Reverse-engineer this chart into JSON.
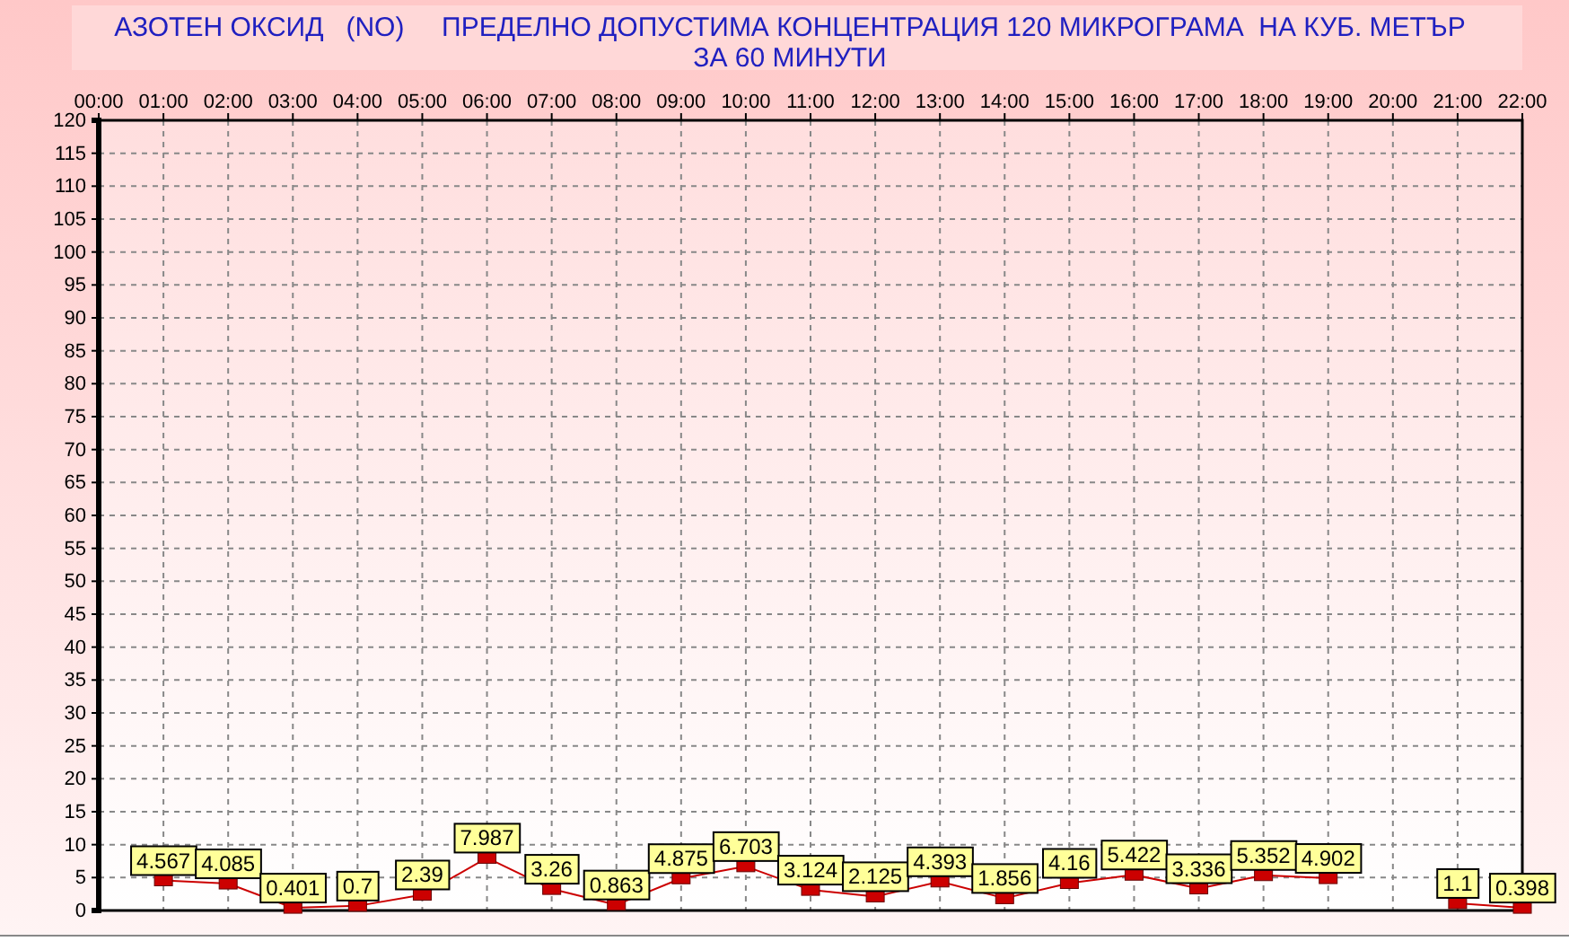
{
  "chart_data": {
    "type": "line",
    "title": "АЗОТЕН ОКСИД   (NO)     ПРЕДЕЛНО ДОПУСТИМА КОНЦЕНТРАЦИЯ 120 МИКРОГРАМА  НА КУБ. МЕТЪР",
    "subtitle": "ЗА 60 МИНУТИ",
    "x": [
      1,
      2,
      3,
      4,
      5,
      6,
      7,
      8,
      9,
      10,
      11,
      12,
      13,
      14,
      15,
      16,
      17,
      18,
      19,
      20,
      21,
      22
    ],
    "series": [
      {
        "color": "#cc0000",
        "values": [
          4.567,
          4.085,
          0.401,
          0.7,
          2.39,
          7.987,
          3.26,
          0.863,
          4.875,
          6.703,
          3.124,
          2.125,
          4.393,
          1.856,
          4.16,
          5.422,
          3.336,
          5.352,
          4.902,
          null,
          1.1,
          0.398
        ]
      }
    ],
    "xlim": [
      0,
      22
    ],
    "xticks": [
      {
        "value": 0,
        "label": "00:00"
      },
      {
        "value": 1,
        "label": "01:00"
      },
      {
        "value": 2,
        "label": "02:00"
      },
      {
        "value": 3,
        "label": "03:00"
      },
      {
        "value": 4,
        "label": "04:00"
      },
      {
        "value": 5,
        "label": "05:00"
      },
      {
        "value": 6,
        "label": "06:00"
      },
      {
        "value": 7,
        "label": "07:00"
      },
      {
        "value": 8,
        "label": "08:00"
      },
      {
        "value": 9,
        "label": "09:00"
      },
      {
        "value": 10,
        "label": "10:00"
      },
      {
        "value": 11,
        "label": "11:00"
      },
      {
        "value": 12,
        "label": "12:00"
      },
      {
        "value": 13,
        "label": "13:00"
      },
      {
        "value": 14,
        "label": "14:00"
      },
      {
        "value": 15,
        "label": "15:00"
      },
      {
        "value": 16,
        "label": "16:00"
      },
      {
        "value": 17,
        "label": "17:00"
      },
      {
        "value": 18,
        "label": "18:00"
      },
      {
        "value": 19,
        "label": "19:00"
      },
      {
        "value": 20,
        "label": "20:00"
      },
      {
        "value": 21,
        "label": "21:00"
      },
      {
        "value": 22,
        "label": "22:00"
      }
    ],
    "ylim": [
      0,
      120
    ],
    "yticks": [
      0,
      5,
      10,
      15,
      20,
      25,
      30,
      35,
      40,
      45,
      50,
      55,
      60,
      65,
      70,
      75,
      80,
      85,
      90,
      95,
      100,
      105,
      110,
      115,
      120
    ],
    "grid": true,
    "marker": "square",
    "line_style": "solid",
    "data_labels": true
  }
}
